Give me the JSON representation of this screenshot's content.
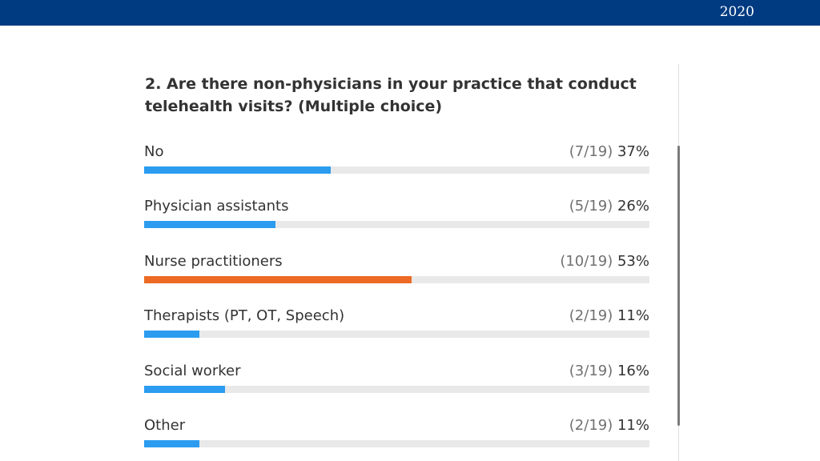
{
  "header": {
    "year": "2020",
    "bar_color": "#003a80"
  },
  "chart_data": {
    "type": "bar",
    "orientation": "horizontal",
    "title": "2. Are there non-physicians in your practice that conduct telehealth visits? (Multiple choice)",
    "total": 19,
    "categories": [
      "No",
      "Physician assistants",
      "Nurse practitioners",
      "Therapists (PT, OT, Speech)",
      "Social worker",
      "Other"
    ],
    "counts": [
      7,
      5,
      10,
      2,
      3,
      2
    ],
    "values": [
      37,
      26,
      53,
      11,
      16,
      11
    ],
    "count_labels": [
      "(7/19)",
      "(5/19)",
      "(10/19)",
      "(2/19)",
      "(3/19)",
      "(2/19)"
    ],
    "percent_labels": [
      "37%",
      "26%",
      "53%",
      "11%",
      "16%",
      "11%"
    ],
    "highlight_index": 2,
    "colors": {
      "bar": "#2b9cf0",
      "highlight": "#ec6a23",
      "track": "#e9e9e9"
    },
    "xlim": [
      0,
      100
    ],
    "grid": false,
    "legend": "none"
  }
}
